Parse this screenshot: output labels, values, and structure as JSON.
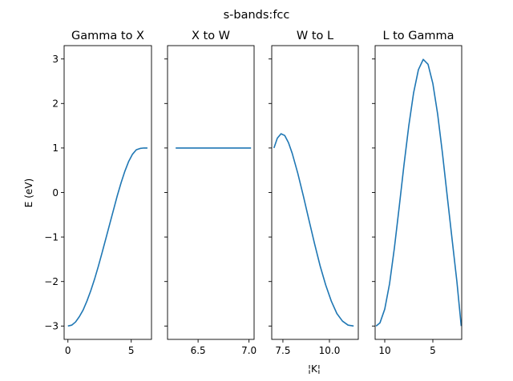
{
  "figure": {
    "suptitle": "s-bands:fcc",
    "ylabel": "E (eV)",
    "xlabel": "¦K¦"
  },
  "chart_data": [
    {
      "type": "line",
      "title": "Gamma to X",
      "line_color": "#1f77b4",
      "xlim": [
        -0.3,
        6.6
      ],
      "ylim": [
        -3.3,
        3.3
      ],
      "xticks": [
        0,
        5
      ],
      "xtick_labels": [
        "0",
        "5"
      ],
      "yticks": [
        -3,
        -2,
        -1,
        0,
        1,
        2,
        3
      ],
      "ytick_labels": [
        "−3",
        "−2",
        "−1",
        "0",
        "1",
        "2",
        "3"
      ],
      "series": [
        {
          "x": [
            0.0,
            0.3,
            0.6,
            0.9,
            1.2,
            1.5,
            1.8,
            2.1,
            2.4,
            2.7,
            3.0,
            3.3,
            3.6,
            3.9,
            4.2,
            4.5,
            4.8,
            5.1,
            5.4,
            5.7,
            6.0,
            6.28
          ],
          "values": [
            -3.0,
            -2.98,
            -2.91,
            -2.79,
            -2.64,
            -2.44,
            -2.21,
            -1.95,
            -1.66,
            -1.35,
            -1.03,
            -0.71,
            -0.39,
            -0.07,
            0.22,
            0.48,
            0.7,
            0.86,
            0.96,
            0.99,
            1.0,
            1.0
          ]
        }
      ]
    },
    {
      "type": "line",
      "title": "X to W",
      "line_color": "#1f77b4",
      "xlim": [
        6.2,
        7.05
      ],
      "ylim": [
        -3.3,
        3.3
      ],
      "xticks": [
        6.5,
        7.0
      ],
      "xtick_labels": [
        "6.5",
        "7.0"
      ],
      "yticks": [
        -3,
        -2,
        -1,
        0,
        1,
        2,
        3
      ],
      "ytick_labels": [
        "",
        "",
        "",
        "",
        "",
        "",
        ""
      ],
      "series": [
        {
          "x": [
            6.28,
            6.5,
            6.75,
            7.0,
            7.02
          ],
          "values": [
            1.0,
            1.0,
            1.0,
            1.0,
            1.0
          ]
        }
      ]
    },
    {
      "type": "line",
      "title": "W to L",
      "line_color": "#1f77b4",
      "xlim": [
        6.9,
        11.55
      ],
      "ylim": [
        -3.3,
        3.3
      ],
      "xticks": [
        7.5,
        10.0
      ],
      "xtick_labels": [
        "7.5",
        "10.0"
      ],
      "yticks": [
        -3,
        -2,
        -1,
        0,
        1,
        2,
        3
      ],
      "ytick_labels": [
        "",
        "",
        "",
        "",
        "",
        "",
        ""
      ],
      "series": [
        {
          "x": [
            7.02,
            7.2,
            7.4,
            7.6,
            7.8,
            8.0,
            8.3,
            8.6,
            8.9,
            9.2,
            9.5,
            9.8,
            10.1,
            10.4,
            10.7,
            11.0,
            11.3
          ],
          "values": [
            1.0,
            1.22,
            1.32,
            1.28,
            1.12,
            0.88,
            0.43,
            -0.08,
            -0.62,
            -1.15,
            -1.65,
            -2.08,
            -2.44,
            -2.72,
            -2.89,
            -2.98,
            -3.0
          ]
        }
      ]
    },
    {
      "type": "line",
      "title": "L to Gamma",
      "line_color": "#1f77b4",
      "xlim": [
        11.0,
        2.0
      ],
      "ylim": [
        -3.3,
        3.3
      ],
      "xticks": [
        10,
        5
      ],
      "xtick_labels": [
        "10",
        "5"
      ],
      "yticks": [
        -3,
        -2,
        -1,
        0,
        1,
        2,
        3
      ],
      "ytick_labels": [
        "",
        "",
        "",
        "",
        "",
        "",
        ""
      ],
      "series": [
        {
          "x": [
            10.9,
            10.5,
            10.0,
            9.5,
            9.0,
            8.5,
            8.0,
            7.5,
            7.0,
            6.5,
            6.0,
            5.5,
            5.0,
            4.5,
            4.0,
            3.5,
            3.0,
            2.5,
            2.05
          ],
          "values": [
            -3.0,
            -2.93,
            -2.62,
            -2.05,
            -1.25,
            -0.33,
            0.62,
            1.5,
            2.24,
            2.76,
            2.99,
            2.88,
            2.45,
            1.76,
            0.88,
            -0.09,
            -1.05,
            -2.0,
            -3.0
          ]
        }
      ]
    }
  ]
}
